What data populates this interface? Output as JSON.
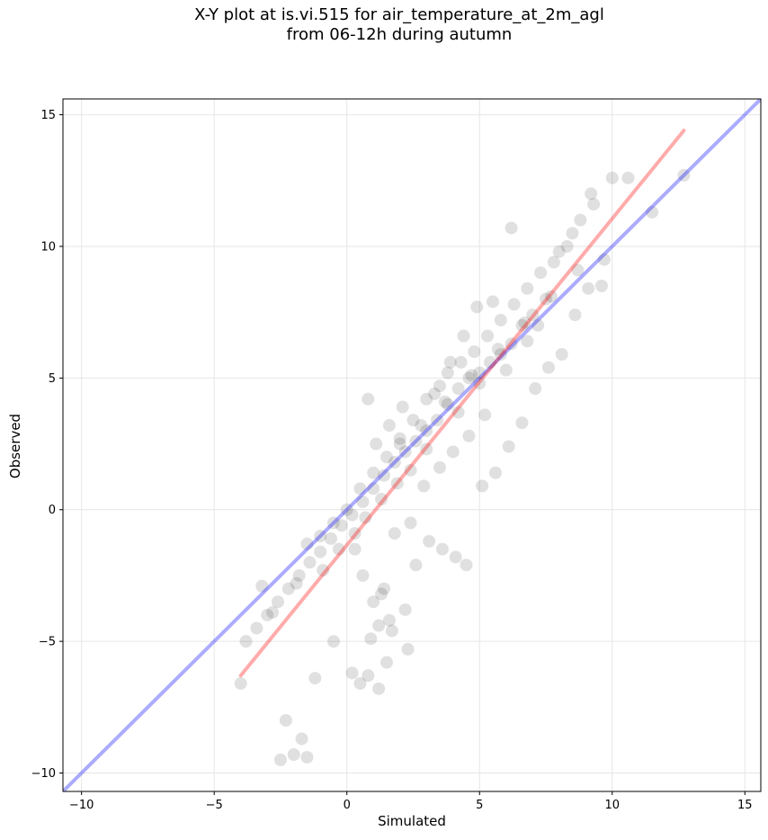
{
  "chart_data": {
    "type": "scatter",
    "title": [
      "X-Y plot at is.vi.515 for air_temperature_at_2m_agl",
      "from 06-12h during autumn"
    ],
    "xlabel": "Simulated",
    "ylabel": "Observed",
    "xlim": [
      -10.7,
      15.6
    ],
    "ylim": [
      -10.7,
      15.6
    ],
    "xticks": [
      -10,
      -5,
      0,
      5,
      10,
      15
    ],
    "yticks": [
      -10,
      -5,
      0,
      5,
      10,
      15
    ],
    "tick_labels": [
      "−10",
      "−5",
      "0",
      "5",
      "10",
      "15"
    ],
    "grid": true,
    "colors": {
      "points": "#000000",
      "fit_line": "#ff0000",
      "identity_line": "#0000ff"
    },
    "lines": [
      {
        "role": "identity",
        "x": [
          -10.7,
          15.6
        ],
        "y": [
          -10.7,
          15.6
        ]
      },
      {
        "role": "fit",
        "x": [
          -4.0,
          12.7
        ],
        "y": [
          -6.3,
          14.4
        ]
      }
    ],
    "points": {
      "x": [
        12.7,
        10.0,
        9.7,
        10.6,
        11.5,
        9.2,
        8.5,
        8.0,
        7.5,
        7.0,
        6.6,
        6.2,
        5.8,
        5.4,
        5.0,
        4.6,
        4.2,
        3.8,
        3.4,
        3.0,
        2.6,
        2.2,
        1.8,
        1.4,
        1.0,
        0.6,
        0.2,
        -0.2,
        -0.6,
        -1.0,
        -1.4,
        -1.8,
        -2.2,
        -2.6,
        -3.0,
        -3.4,
        -3.8,
        -4.0,
        -2.5,
        -2.0,
        -1.5,
        -2.3,
        -1.7,
        -1.2,
        -0.5,
        0.2,
        0.5,
        0.8,
        1.2,
        1.5,
        1.7,
        2.2,
        2.6,
        0.3,
        0.6,
        1.0,
        1.4,
        1.8,
        2.4,
        3.1,
        3.6,
        4.1,
        4.5,
        5.1,
        5.6,
        6.1,
        6.6,
        7.1,
        7.6,
        8.1,
        8.6,
        9.1,
        9.6,
        0.8,
        1.1,
        1.6,
        2.1,
        3.3,
        3.8,
        4.3,
        4.8,
        5.3,
        5.8,
        6.3,
        6.8,
        7.3,
        7.8,
        8.3,
        8.8,
        9.3,
        6.2,
        5.5,
        4.9,
        4.4,
        3.9,
        3.5,
        3.0,
        2.5,
        2.0,
        1.5,
        1.0,
        0.5,
        0.0,
        -0.5,
        -1.0,
        -1.5,
        4.0,
        4.6,
        5.2,
        3.5,
        2.9,
        6.0,
        6.8,
        7.2,
        5.0,
        4.2,
        3.0,
        2.4,
        1.9,
        1.3,
        0.7,
        0.3,
        -0.3,
        -0.9,
        -1.9,
        -2.8,
        -3.2,
        2.0,
        2.8,
        3.7,
        4.7,
        5.7,
        6.7,
        7.7,
        8.7,
        1.2,
        0.9,
        1.6,
        1.3,
        2.3
      ],
      "y": [
        12.7,
        12.6,
        9.5,
        12.6,
        11.3,
        12.0,
        10.5,
        9.8,
        8.0,
        7.4,
        7.0,
        6.3,
        5.9,
        5.6,
        5.2,
        5.0,
        4.6,
        4.0,
        3.4,
        3.0,
        2.6,
        2.2,
        1.8,
        1.3,
        0.8,
        0.3,
        -0.2,
        -0.6,
        -1.1,
        -1.6,
        -2.0,
        -2.5,
        -3.0,
        -3.5,
        -4.0,
        -4.5,
        -5.0,
        -6.6,
        -9.5,
        -9.3,
        -9.4,
        -8.0,
        -8.7,
        -6.4,
        -5.0,
        -6.2,
        -6.6,
        -6.3,
        -6.8,
        -5.8,
        -4.6,
        -3.8,
        -2.1,
        -1.5,
        -2.5,
        -3.5,
        -3.0,
        -0.9,
        -0.5,
        -1.2,
        -1.5,
        -1.8,
        -2.1,
        0.9,
        1.4,
        2.4,
        3.3,
        4.6,
        5.4,
        5.9,
        7.4,
        8.4,
        8.5,
        4.2,
        2.5,
        3.2,
        3.9,
        4.4,
        5.2,
        5.6,
        6.0,
        6.6,
        7.2,
        7.8,
        8.4,
        9.0,
        9.4,
        10.0,
        11.0,
        11.6,
        10.7,
        7.9,
        7.7,
        6.6,
        5.6,
        4.7,
        4.2,
        3.4,
        2.7,
        2.0,
        1.4,
        0.8,
        0.0,
        -0.5,
        -1.0,
        -1.3,
        2.2,
        2.8,
        3.6,
        1.6,
        0.9,
        5.3,
        6.4,
        7.0,
        4.8,
        3.7,
        2.3,
        1.5,
        1.0,
        0.4,
        -0.3,
        -0.9,
        -1.5,
        -2.3,
        -2.8,
        -3.9,
        -2.9,
        2.5,
        3.2,
        4.1,
        5.1,
        6.1,
        7.1,
        8.1,
        9.1,
        -4.4,
        -4.9,
        -4.2,
        -3.2,
        -5.3
      ]
    }
  }
}
